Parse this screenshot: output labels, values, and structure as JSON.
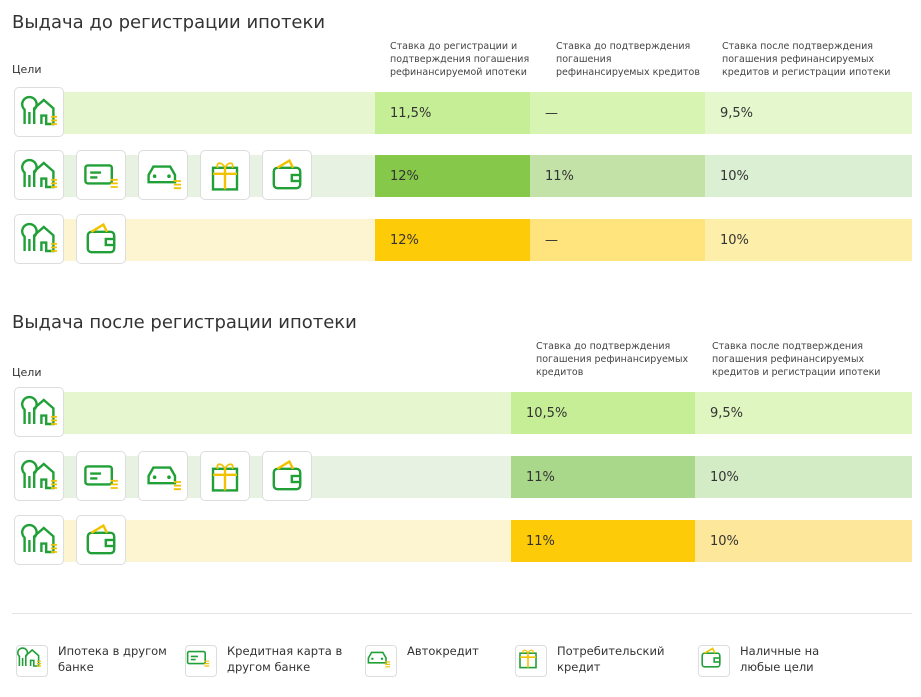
{
  "sections": [
    {
      "title": "Выдача до регистрации ипотеки",
      "goals_label": "Цели",
      "columns": [
        "Ставка до регистрации и подтверждения погашения рефинансируемой ипотеки",
        "Ставка до подтверждения погашения рефинансируемых кредитов",
        "Ставка после подтверждения погашения рефинансируемых кредитов и регистрации ипотеки"
      ],
      "rows": [
        [
          "11,5%",
          "—",
          "9,5%"
        ],
        [
          "12%",
          "11%",
          "10%"
        ],
        [
          "12%",
          "—",
          "10%"
        ]
      ]
    },
    {
      "title": "Выдача после регистрации ипотеки",
      "goals_label": "Цели",
      "columns": [
        "Ставка до подтверждения погашения рефинансируемых кредитов",
        "Ставка после подтверждения погашения рефинансируемых кредитов и регистрации ипотеки"
      ],
      "rows": [
        [
          "10,5%",
          "9,5%"
        ],
        [
          "11%",
          "10%"
        ],
        [
          "11%",
          "10%"
        ]
      ]
    }
  ],
  "legend": [
    "Ипотека в другом банке",
    "Кредитная карта в другом банке",
    "Автокредит",
    "Потребительский кредит",
    "Наличные на любые цели"
  ]
}
